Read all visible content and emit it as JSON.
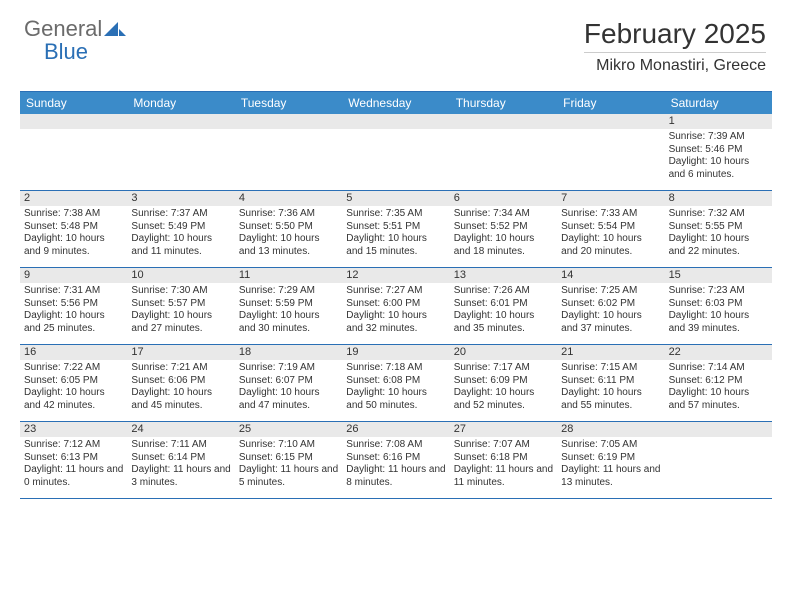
{
  "logo": {
    "text1": "General",
    "text2": "Blue"
  },
  "title": "February 2025",
  "location": "Mikro Monastiri, Greece",
  "colors": {
    "header_bg": "#3b8bc9",
    "accent_line": "#2a6fb5",
    "daynum_bg": "#e9e9e9",
    "text": "#333333",
    "logo_gray": "#6b6b6b",
    "logo_blue": "#2a6fb5",
    "page_bg": "#ffffff"
  },
  "dayNames": [
    "Sunday",
    "Monday",
    "Tuesday",
    "Wednesday",
    "Thursday",
    "Friday",
    "Saturday"
  ],
  "weeks": [
    [
      null,
      null,
      null,
      null,
      null,
      null,
      {
        "n": "1",
        "sunrise": "Sunrise: 7:39 AM",
        "sunset": "Sunset: 5:46 PM",
        "daylight": "Daylight: 10 hours and 6 minutes."
      }
    ],
    [
      {
        "n": "2",
        "sunrise": "Sunrise: 7:38 AM",
        "sunset": "Sunset: 5:48 PM",
        "daylight": "Daylight: 10 hours and 9 minutes."
      },
      {
        "n": "3",
        "sunrise": "Sunrise: 7:37 AM",
        "sunset": "Sunset: 5:49 PM",
        "daylight": "Daylight: 10 hours and 11 minutes."
      },
      {
        "n": "4",
        "sunrise": "Sunrise: 7:36 AM",
        "sunset": "Sunset: 5:50 PM",
        "daylight": "Daylight: 10 hours and 13 minutes."
      },
      {
        "n": "5",
        "sunrise": "Sunrise: 7:35 AM",
        "sunset": "Sunset: 5:51 PM",
        "daylight": "Daylight: 10 hours and 15 minutes."
      },
      {
        "n": "6",
        "sunrise": "Sunrise: 7:34 AM",
        "sunset": "Sunset: 5:52 PM",
        "daylight": "Daylight: 10 hours and 18 minutes."
      },
      {
        "n": "7",
        "sunrise": "Sunrise: 7:33 AM",
        "sunset": "Sunset: 5:54 PM",
        "daylight": "Daylight: 10 hours and 20 minutes."
      },
      {
        "n": "8",
        "sunrise": "Sunrise: 7:32 AM",
        "sunset": "Sunset: 5:55 PM",
        "daylight": "Daylight: 10 hours and 22 minutes."
      }
    ],
    [
      {
        "n": "9",
        "sunrise": "Sunrise: 7:31 AM",
        "sunset": "Sunset: 5:56 PM",
        "daylight": "Daylight: 10 hours and 25 minutes."
      },
      {
        "n": "10",
        "sunrise": "Sunrise: 7:30 AM",
        "sunset": "Sunset: 5:57 PM",
        "daylight": "Daylight: 10 hours and 27 minutes."
      },
      {
        "n": "11",
        "sunrise": "Sunrise: 7:29 AM",
        "sunset": "Sunset: 5:59 PM",
        "daylight": "Daylight: 10 hours and 30 minutes."
      },
      {
        "n": "12",
        "sunrise": "Sunrise: 7:27 AM",
        "sunset": "Sunset: 6:00 PM",
        "daylight": "Daylight: 10 hours and 32 minutes."
      },
      {
        "n": "13",
        "sunrise": "Sunrise: 7:26 AM",
        "sunset": "Sunset: 6:01 PM",
        "daylight": "Daylight: 10 hours and 35 minutes."
      },
      {
        "n": "14",
        "sunrise": "Sunrise: 7:25 AM",
        "sunset": "Sunset: 6:02 PM",
        "daylight": "Daylight: 10 hours and 37 minutes."
      },
      {
        "n": "15",
        "sunrise": "Sunrise: 7:23 AM",
        "sunset": "Sunset: 6:03 PM",
        "daylight": "Daylight: 10 hours and 39 minutes."
      }
    ],
    [
      {
        "n": "16",
        "sunrise": "Sunrise: 7:22 AM",
        "sunset": "Sunset: 6:05 PM",
        "daylight": "Daylight: 10 hours and 42 minutes."
      },
      {
        "n": "17",
        "sunrise": "Sunrise: 7:21 AM",
        "sunset": "Sunset: 6:06 PM",
        "daylight": "Daylight: 10 hours and 45 minutes."
      },
      {
        "n": "18",
        "sunrise": "Sunrise: 7:19 AM",
        "sunset": "Sunset: 6:07 PM",
        "daylight": "Daylight: 10 hours and 47 minutes."
      },
      {
        "n": "19",
        "sunrise": "Sunrise: 7:18 AM",
        "sunset": "Sunset: 6:08 PM",
        "daylight": "Daylight: 10 hours and 50 minutes."
      },
      {
        "n": "20",
        "sunrise": "Sunrise: 7:17 AM",
        "sunset": "Sunset: 6:09 PM",
        "daylight": "Daylight: 10 hours and 52 minutes."
      },
      {
        "n": "21",
        "sunrise": "Sunrise: 7:15 AM",
        "sunset": "Sunset: 6:11 PM",
        "daylight": "Daylight: 10 hours and 55 minutes."
      },
      {
        "n": "22",
        "sunrise": "Sunrise: 7:14 AM",
        "sunset": "Sunset: 6:12 PM",
        "daylight": "Daylight: 10 hours and 57 minutes."
      }
    ],
    [
      {
        "n": "23",
        "sunrise": "Sunrise: 7:12 AM",
        "sunset": "Sunset: 6:13 PM",
        "daylight": "Daylight: 11 hours and 0 minutes."
      },
      {
        "n": "24",
        "sunrise": "Sunrise: 7:11 AM",
        "sunset": "Sunset: 6:14 PM",
        "daylight": "Daylight: 11 hours and 3 minutes."
      },
      {
        "n": "25",
        "sunrise": "Sunrise: 7:10 AM",
        "sunset": "Sunset: 6:15 PM",
        "daylight": "Daylight: 11 hours and 5 minutes."
      },
      {
        "n": "26",
        "sunrise": "Sunrise: 7:08 AM",
        "sunset": "Sunset: 6:16 PM",
        "daylight": "Daylight: 11 hours and 8 minutes."
      },
      {
        "n": "27",
        "sunrise": "Sunrise: 7:07 AM",
        "sunset": "Sunset: 6:18 PM",
        "daylight": "Daylight: 11 hours and 11 minutes."
      },
      {
        "n": "28",
        "sunrise": "Sunrise: 7:05 AM",
        "sunset": "Sunset: 6:19 PM",
        "daylight": "Daylight: 11 hours and 13 minutes."
      },
      null
    ]
  ]
}
